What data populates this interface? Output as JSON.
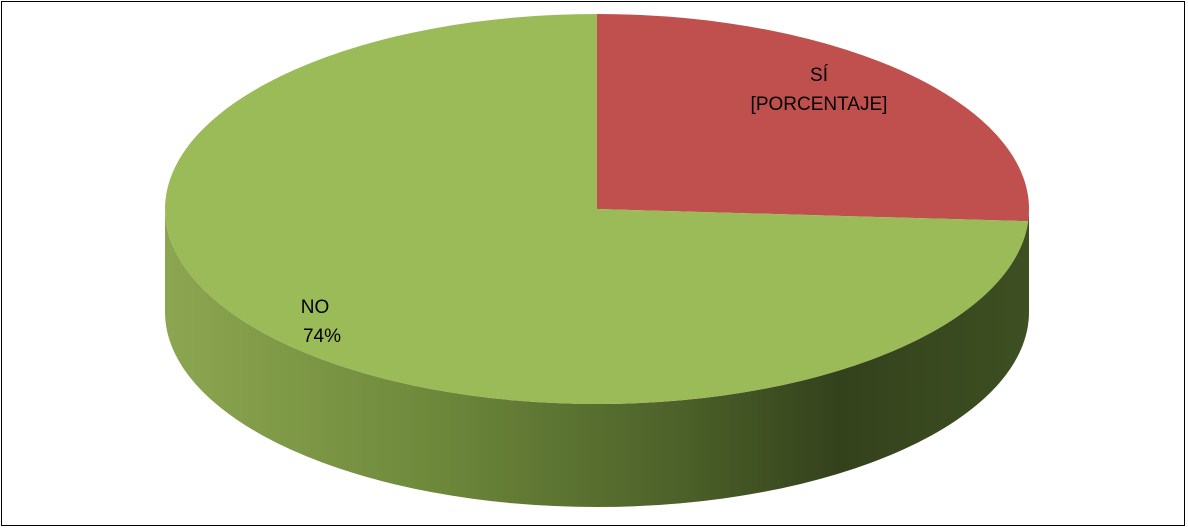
{
  "chart_data": {
    "type": "pie",
    "style": "3d",
    "title": "",
    "slices": [
      {
        "name": "SÍ",
        "value": 26,
        "label": "[PORCENTAJE]",
        "color": "#c0504d"
      },
      {
        "name": "NO",
        "value": 74,
        "label": "74%",
        "color": "#9bbb59"
      }
    ],
    "legend": "none"
  }
}
